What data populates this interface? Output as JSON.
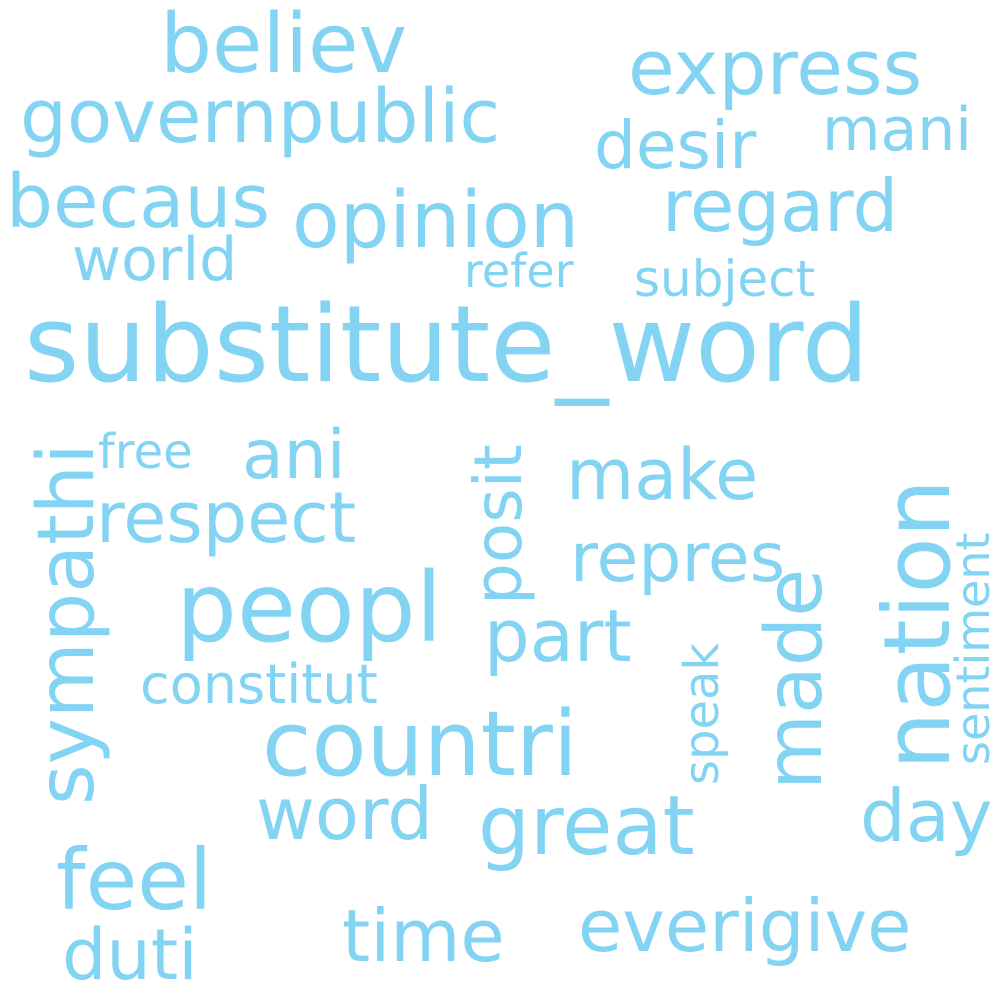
{
  "color": "#83d3f3",
  "words": {
    "substitute_word": "substitute_word",
    "peopl": "peopl",
    "countri": "countri",
    "nation": "nation",
    "opinion": "opinion",
    "believ": "believ",
    "express": "express",
    "governpublic": "governpublic",
    "becaus": "becaus",
    "regard": "regard",
    "great": "great",
    "sympathi": "sympathi",
    "feel": "feel",
    "everigive": "everigive",
    "made": "made",
    "time": "time",
    "word": "word",
    "make": "make",
    "repres": "repres",
    "part": "part",
    "ani": "ani",
    "respect": "respect",
    "desir": "desir",
    "mani": "mani",
    "world": "world",
    "day": "day",
    "posit": "posit",
    "duti": "duti",
    "constitut": "constitut",
    "sentiment": "sentiment",
    "speak": "speak",
    "subject": "subject",
    "refer": "refer",
    "free": "free"
  }
}
